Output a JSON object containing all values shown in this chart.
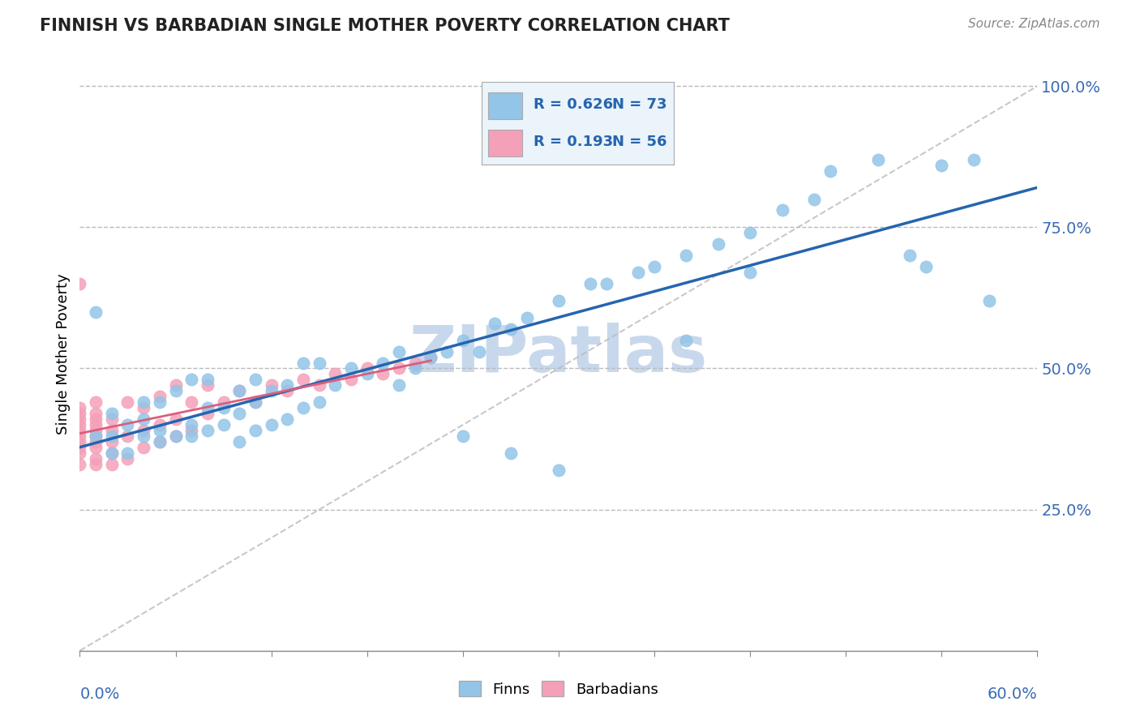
{
  "title": "FINNISH VS BARBADIAN SINGLE MOTHER POVERTY CORRELATION CHART",
  "source": "Source: ZipAtlas.com",
  "ylabel": "Single Mother Poverty",
  "xlim": [
    0.0,
    0.6
  ],
  "ylim": [
    0.0,
    1.05
  ],
  "finns_R": 0.626,
  "finns_N": 73,
  "barbadians_R": 0.193,
  "barbadians_N": 56,
  "finn_color": "#92C5E8",
  "barbadian_color": "#F4A0B8",
  "finn_line_color": "#2565AE",
  "barbadian_line_color": "#D95F7F",
  "barbadian_line_style": "solid",
  "diag_line_color": "#BBBBBB",
  "watermark": "ZIPatlas",
  "watermark_color": "#C8D8EC",
  "legend_box_color": "#EBF3FB",
  "legend_R_color": "#2565AE",
  "legend_N_color": "#2565AE",
  "finns_x": [
    0.01,
    0.01,
    0.02,
    0.02,
    0.02,
    0.03,
    0.03,
    0.04,
    0.04,
    0.04,
    0.05,
    0.05,
    0.05,
    0.06,
    0.06,
    0.07,
    0.07,
    0.07,
    0.08,
    0.08,
    0.08,
    0.09,
    0.09,
    0.1,
    0.1,
    0.1,
    0.11,
    0.11,
    0.11,
    0.12,
    0.12,
    0.13,
    0.13,
    0.14,
    0.14,
    0.15,
    0.15,
    0.16,
    0.17,
    0.18,
    0.19,
    0.2,
    0.2,
    0.21,
    0.22,
    0.23,
    0.24,
    0.25,
    0.26,
    0.27,
    0.28,
    0.3,
    0.32,
    0.33,
    0.35,
    0.36,
    0.38,
    0.4,
    0.42,
    0.44,
    0.46,
    0.47,
    0.5,
    0.52,
    0.53,
    0.54,
    0.56,
    0.57,
    0.38,
    0.42,
    0.24,
    0.27,
    0.3
  ],
  "finns_y": [
    0.38,
    0.6,
    0.35,
    0.38,
    0.42,
    0.35,
    0.4,
    0.38,
    0.41,
    0.44,
    0.37,
    0.39,
    0.44,
    0.38,
    0.46,
    0.38,
    0.4,
    0.48,
    0.39,
    0.43,
    0.48,
    0.4,
    0.43,
    0.37,
    0.42,
    0.46,
    0.39,
    0.44,
    0.48,
    0.4,
    0.46,
    0.41,
    0.47,
    0.43,
    0.51,
    0.44,
    0.51,
    0.47,
    0.5,
    0.49,
    0.51,
    0.47,
    0.53,
    0.5,
    0.52,
    0.53,
    0.55,
    0.53,
    0.58,
    0.57,
    0.59,
    0.62,
    0.65,
    0.65,
    0.67,
    0.68,
    0.7,
    0.72,
    0.74,
    0.78,
    0.8,
    0.85,
    0.87,
    0.7,
    0.68,
    0.86,
    0.87,
    0.62,
    0.55,
    0.67,
    0.38,
    0.35,
    0.32
  ],
  "barbadians_x": [
    0.0,
    0.0,
    0.0,
    0.0,
    0.0,
    0.0,
    0.0,
    0.0,
    0.0,
    0.0,
    0.0,
    0.01,
    0.01,
    0.01,
    0.01,
    0.01,
    0.01,
    0.01,
    0.01,
    0.01,
    0.01,
    0.02,
    0.02,
    0.02,
    0.02,
    0.02,
    0.03,
    0.03,
    0.03,
    0.04,
    0.04,
    0.04,
    0.05,
    0.05,
    0.05,
    0.06,
    0.06,
    0.06,
    0.07,
    0.07,
    0.08,
    0.08,
    0.09,
    0.1,
    0.11,
    0.12,
    0.13,
    0.14,
    0.15,
    0.16,
    0.17,
    0.18,
    0.19,
    0.2,
    0.21,
    0.22
  ],
  "barbadians_y": [
    0.33,
    0.35,
    0.36,
    0.37,
    0.38,
    0.39,
    0.4,
    0.41,
    0.42,
    0.43,
    0.65,
    0.33,
    0.34,
    0.36,
    0.37,
    0.38,
    0.39,
    0.4,
    0.41,
    0.42,
    0.44,
    0.33,
    0.35,
    0.37,
    0.39,
    0.41,
    0.34,
    0.38,
    0.44,
    0.36,
    0.39,
    0.43,
    0.37,
    0.4,
    0.45,
    0.38,
    0.41,
    0.47,
    0.39,
    0.44,
    0.42,
    0.47,
    0.44,
    0.46,
    0.44,
    0.47,
    0.46,
    0.48,
    0.47,
    0.49,
    0.48,
    0.5,
    0.49,
    0.5,
    0.51,
    0.52
  ]
}
